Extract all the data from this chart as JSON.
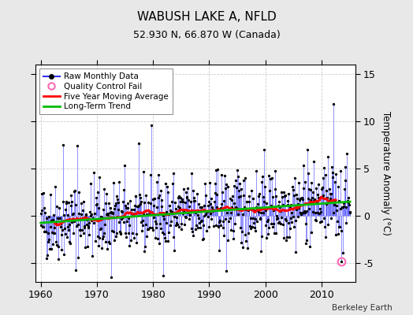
{
  "title": "WABUSH LAKE A, NFLD",
  "subtitle": "52.930 N, 66.870 W (Canada)",
  "ylabel": "Temperature Anomaly (°C)",
  "xlabel_years": [
    1960,
    1970,
    1980,
    1990,
    2000,
    2010
  ],
  "ylim": [
    -7,
    16
  ],
  "yticks": [
    -5,
    0,
    5,
    10,
    15
  ],
  "xlim": [
    1959.0,
    2016.0
  ],
  "bg_color": "#e8e8e8",
  "plot_bg_color": "#ffffff",
  "line_color": "#3333ff",
  "marker_color": "#000000",
  "ma_color": "#ff0000",
  "trend_color": "#00bb00",
  "qc_color": "#ff69b4",
  "attribution": "Berkeley Earth",
  "seed": 42,
  "title_fontsize": 11,
  "subtitle_fontsize": 9,
  "tick_fontsize": 9,
  "ylabel_fontsize": 8.5
}
